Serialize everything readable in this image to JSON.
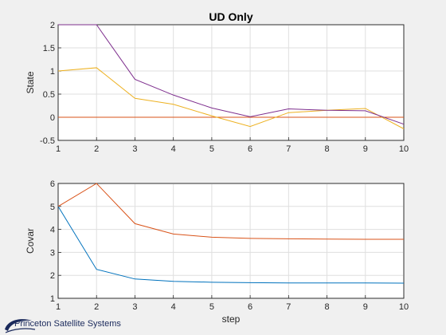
{
  "figure": {
    "background": "#f0f0f0",
    "logo_text": "Princeton Satellite Systems"
  },
  "chart_data": [
    {
      "type": "line",
      "title": "UD Only",
      "xlabel": "",
      "ylabel": "State",
      "xlim": [
        1,
        10
      ],
      "ylim": [
        -0.5,
        2
      ],
      "xticks": [
        "1",
        "2",
        "3",
        "4",
        "5",
        "6",
        "7",
        "8",
        "9",
        "10"
      ],
      "yticks": [
        "-0.5",
        "0",
        "0.5",
        "1",
        "1.5",
        "2"
      ],
      "grid": true,
      "x": [
        1,
        2,
        3,
        4,
        5,
        6,
        7,
        8,
        9,
        10
      ],
      "series": [
        {
          "color": "#0072BD",
          "values": [
            0,
            0,
            0,
            0,
            0,
            0,
            0,
            0,
            0,
            0
          ]
        },
        {
          "color": "#D95319",
          "values": [
            0,
            0,
            0,
            0,
            0,
            0,
            0,
            0,
            0,
            0
          ]
        },
        {
          "color": "#EDB120",
          "values": [
            1.0,
            1.07,
            0.41,
            0.28,
            0.03,
            -0.2,
            0.1,
            0.15,
            0.19,
            -0.25
          ]
        },
        {
          "color": "#7E2F8E",
          "values": [
            2.0,
            2.0,
            0.82,
            0.48,
            0.2,
            0.01,
            0.18,
            0.15,
            0.14,
            -0.15
          ]
        }
      ]
    },
    {
      "type": "line",
      "title": "",
      "xlabel": "step",
      "ylabel": "Covar",
      "xlim": [
        1,
        10
      ],
      "ylim": [
        1,
        6
      ],
      "xticks": [
        "1",
        "2",
        "3",
        "4",
        "5",
        "6",
        "7",
        "8",
        "9",
        "10"
      ],
      "yticks": [
        "1",
        "2",
        "3",
        "4",
        "5",
        "6"
      ],
      "grid": true,
      "x": [
        1,
        2,
        3,
        4,
        5,
        6,
        7,
        8,
        9,
        10
      ],
      "series": [
        {
          "color": "#0072BD",
          "values": [
            5.0,
            2.26,
            1.84,
            1.74,
            1.7,
            1.68,
            1.67,
            1.67,
            1.67,
            1.66
          ]
        },
        {
          "color": "#D95319",
          "values": [
            5.0,
            6.0,
            4.25,
            3.8,
            3.66,
            3.61,
            3.59,
            3.58,
            3.57,
            3.57
          ]
        }
      ]
    }
  ]
}
